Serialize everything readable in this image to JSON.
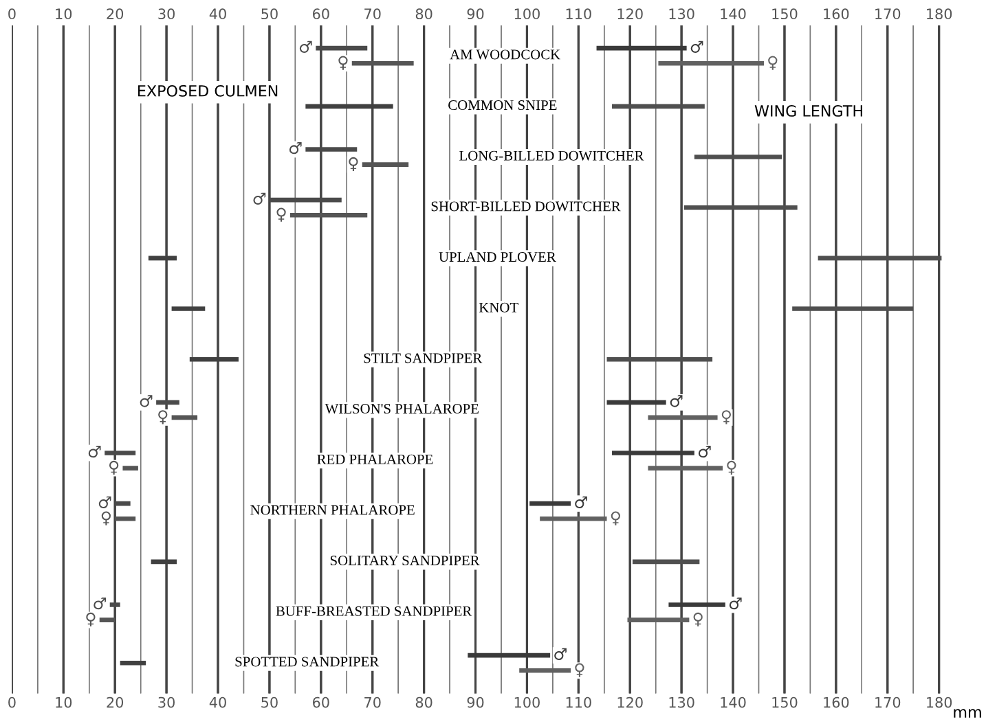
{
  "chart_data": {
    "type": "bar",
    "orientation": "horizontal",
    "categories": [
      "AM WOODCOCK",
      "COMMON SNIPE",
      "LONG-BILLED DOWITCHER",
      "SHORT-BILLED DOWITCHER",
      "UPLAND PLOVER",
      "KNOT",
      "STILT SANDPIPER",
      "WILSON'S PHALAROPE",
      "RED PHALAROPE",
      "NORTHERN PHALAROPE",
      "SOLITARY SANDPIPER",
      "BUFF-BREASTED SANDPIPER",
      "SPOTTED SANDPIPER"
    ],
    "series": [
      {
        "name": "♂",
        "color": "#4a4a4a",
        "base": [
          59,
          null,
          57,
          50,
          null,
          null,
          null,
          28,
          18,
          20,
          null,
          19,
          null
        ],
        "values": [
          10,
          null,
          10,
          14,
          null,
          null,
          null,
          4.5,
          6,
          3,
          null,
          2,
          null
        ]
      },
      {
        "name": "♀",
        "color": "#555555",
        "base": [
          66,
          null,
          68,
          54,
          null,
          null,
          null,
          31,
          21.5,
          20,
          null,
          17,
          null
        ],
        "values": [
          12,
          null,
          9,
          15,
          null,
          null,
          null,
          5,
          3,
          4,
          null,
          3,
          null
        ]
      },
      {
        "color": "#404040",
        "base": [
          null,
          57,
          null,
          null,
          26.5,
          31,
          34.5,
          null,
          null,
          null,
          27,
          null,
          21
        ],
        "values": [
          null,
          17,
          null,
          null,
          5.5,
          6.5,
          9.5,
          null,
          null,
          null,
          5,
          null,
          5
        ]
      },
      {
        "name": "♂",
        "color": "#3a3a3a",
        "base": [
          113.5,
          null,
          null,
          null,
          null,
          null,
          null,
          115.5,
          116.5,
          100.5,
          null,
          127.5,
          88.5
        ],
        "values": [
          17.5,
          null,
          null,
          null,
          null,
          null,
          null,
          11.5,
          16,
          8,
          null,
          11,
          16
        ]
      },
      {
        "name": "♀",
        "color": "#616161",
        "base": [
          125.5,
          null,
          null,
          null,
          null,
          null,
          null,
          123.5,
          123.5,
          102.5,
          null,
          119.5,
          98.5
        ],
        "values": [
          20.5,
          null,
          null,
          null,
          null,
          null,
          null,
          13.5,
          14.5,
          13,
          null,
          12,
          10
        ]
      },
      {
        "color": "#4f4f4f",
        "base": [
          null,
          116.5,
          132.5,
          130.5,
          156.5,
          151.5,
          115.5,
          null,
          null,
          null,
          120.5,
          null,
          null
        ],
        "values": [
          null,
          18,
          17,
          22,
          24,
          23.5,
          20.5,
          null,
          null,
          null,
          13,
          null,
          null
        ]
      }
    ],
    "xlim": [
      0,
      181
    ],
    "xticks": [
      0,
      {
        "value": 5,
        "label": null
      },
      10,
      {
        "value": 15,
        "label": null
      },
      20,
      {
        "value": 25,
        "label": null
      },
      30,
      {
        "value": 35,
        "label": null
      },
      40,
      {
        "value": 45,
        "label": null
      },
      50,
      {
        "value": 55,
        "label": null
      },
      60,
      {
        "value": 65,
        "label": null
      },
      70,
      {
        "value": 75,
        "label": null
      },
      80,
      {
        "value": 85,
        "label": null
      },
      90,
      {
        "value": 95,
        "label": null
      },
      100,
      {
        "value": 105,
        "label": null
      },
      110,
      {
        "value": 115,
        "label": null
      },
      120,
      {
        "value": 125,
        "label": null
      },
      130,
      {
        "value": 135,
        "label": null
      },
      140,
      {
        "value": 145,
        "label": null
      },
      150,
      {
        "value": 155,
        "label": null
      },
      160,
      {
        "value": 165,
        "label": null
      },
      170,
      {
        "value": 175,
        "label": null
      },
      180
    ],
    "x2lim": [
      0,
      181
    ],
    "x2ticks": [
      0,
      {
        "value": 5,
        "label": null
      },
      10,
      {
        "value": 15,
        "label": null
      },
      20,
      {
        "value": 25,
        "label": null
      },
      30,
      {
        "value": 35,
        "label": null
      },
      40,
      {
        "value": 45,
        "label": null
      },
      50,
      {
        "value": 55,
        "label": null
      },
      60,
      {
        "value": 65,
        "label": null
      },
      70,
      {
        "value": 75,
        "label": null
      },
      80,
      {
        "value": 85,
        "label": null
      },
      90,
      {
        "value": 95,
        "label": null
      },
      100,
      {
        "value": 105,
        "label": null
      },
      110,
      {
        "value": 115,
        "label": null
      },
      120,
      {
        "value": 125,
        "label": null
      },
      130,
      {
        "value": 135,
        "label": null
      },
      140,
      {
        "value": 145,
        "label": null
      },
      150,
      {
        "value": 155,
        "label": null
      },
      160,
      {
        "value": 165,
        "label": null
      },
      170,
      {
        "value": 175,
        "label": null
      },
      180
    ],
    "grid": "x",
    "annotations": [
      "EXPOSED CULMEN",
      "WING LENGTH",
      "mm"
    ]
  }
}
